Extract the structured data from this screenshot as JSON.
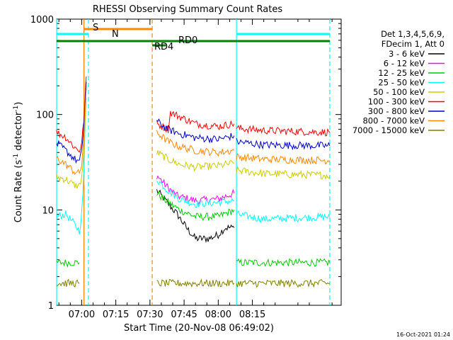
{
  "chart_data": {
    "type": "line",
    "title": "RHESSI Observing Summary Count Rates",
    "xlabel": "Start Time (20-Nov-08 06:49:02)",
    "ylabel": "Count Rate (s",
    "ylabel_sup": "-1",
    "ylabel_rest": " detector",
    "ylabel_sup2": "-1",
    "ylabel_end": ")",
    "y_scale": "log",
    "xlim_minutes": [
      409,
      534
    ],
    "ylim": [
      1,
      1000
    ],
    "x_ticks": [
      {
        "min": 420,
        "label": "07:00"
      },
      {
        "min": 435,
        "label": "07:15"
      },
      {
        "min": 450,
        "label": "07:30"
      },
      {
        "min": 465,
        "label": "07:45"
      },
      {
        "min": 480,
        "label": "08:00"
      },
      {
        "min": 495,
        "label": "08:15"
      }
    ],
    "y_ticks": [
      {
        "v": 1,
        "label": "1"
      },
      {
        "v": 10,
        "label": "10"
      },
      {
        "v": 100,
        "label": "100"
      },
      {
        "v": 1000,
        "label": "1000"
      }
    ],
    "legend_header": [
      "Det 1,3,4,5,6,9,",
      "FDecim 1, Att 0"
    ],
    "series": [
      {
        "name": "3 - 6 keV",
        "color": "#000000",
        "segments": [
          [
            [
              453,
              16
            ],
            [
              462,
              9
            ],
            [
              466,
              6.5
            ],
            [
              470,
              5
            ],
            [
              476,
              5
            ],
            [
              480,
              5.5
            ],
            [
              483,
              6.5
            ],
            [
              487,
              6.5
            ]
          ]
        ]
      },
      {
        "name": "6 - 12 keV",
        "color": "#ff00ff",
        "segments": [
          [
            [
              453,
              23
            ],
            [
              458,
              17
            ],
            [
              462,
              14
            ],
            [
              470,
              12.5
            ],
            [
              480,
              13
            ],
            [
              487,
              15
            ]
          ]
        ]
      },
      {
        "name": "12 - 25 keV",
        "color": "#00cc00",
        "segments": [
          [
            [
              409,
              2.8
            ],
            [
              419,
              2.8
            ]
          ],
          [
            [
              453,
              15
            ],
            [
              458,
              12
            ],
            [
              463,
              10
            ],
            [
              470,
              8.5
            ],
            [
              480,
              8.5
            ],
            [
              487,
              10
            ]
          ],
          [
            [
              488,
              2.8
            ],
            [
              529,
              2.8
            ]
          ]
        ]
      },
      {
        "name": "25 - 50 keV",
        "color": "#00ffff",
        "segments": [
          [
            [
              409,
              8.5
            ],
            [
              413,
              9
            ],
            [
              417,
              7
            ],
            [
              419,
              6
            ],
            [
              420,
              9
            ],
            [
              421,
              25
            ],
            [
              422,
              200
            ]
          ],
          [
            [
              453,
              21
            ],
            [
              458,
              16
            ],
            [
              463,
              13
            ],
            [
              470,
              11.5
            ],
            [
              480,
              12
            ],
            [
              487,
              12.5
            ]
          ],
          [
            [
              488,
              9
            ],
            [
              500,
              8
            ],
            [
              529,
              8.5
            ]
          ]
        ]
      },
      {
        "name": "50 - 100 keV",
        "color": "#cccc00",
        "segments": [
          [
            [
              409,
              22
            ],
            [
              413,
              21
            ],
            [
              417,
              18
            ],
            [
              419,
              18
            ],
            [
              420,
              22
            ],
            [
              421,
              40
            ],
            [
              422,
              150
            ]
          ],
          [
            [
              453,
              40
            ],
            [
              458,
              34
            ],
            [
              463,
              30
            ],
            [
              470,
              28
            ],
            [
              480,
              29
            ],
            [
              487,
              31
            ]
          ],
          [
            [
              488,
              26
            ],
            [
              500,
              24
            ],
            [
              529,
              23
            ]
          ]
        ]
      },
      {
        "name": "100 - 300 keV",
        "color": "#ff0000",
        "segments": [
          [
            [
              409,
              65
            ],
            [
              413,
              58
            ],
            [
              417,
              45
            ],
            [
              419,
              42
            ],
            [
              420,
              50
            ],
            [
              421,
              90
            ],
            [
              422,
              250
            ]
          ],
          [
            [
              453,
              80
            ],
            [
              458,
              70
            ],
            [
              459,
              105
            ],
            [
              463,
              95
            ],
            [
              470,
              80
            ],
            [
              480,
              75
            ],
            [
              487,
              80
            ]
          ],
          [
            [
              488,
              72
            ],
            [
              500,
              68
            ],
            [
              529,
              65
            ]
          ]
        ]
      },
      {
        "name": "300 - 800 keV",
        "color": "#0000cc",
        "segments": [
          [
            [
              409,
              50
            ],
            [
              413,
              42
            ],
            [
              417,
              34
            ],
            [
              419,
              32
            ],
            [
              420,
              40
            ],
            [
              421,
              80
            ],
            [
              422,
              220
            ]
          ],
          [
            [
              453,
              85
            ],
            [
              458,
              70
            ],
            [
              463,
              63
            ],
            [
              470,
              57
            ],
            [
              480,
              55
            ],
            [
              487,
              60
            ]
          ],
          [
            [
              488,
              52
            ],
            [
              500,
              48
            ],
            [
              529,
              47
            ]
          ]
        ]
      },
      {
        "name": "800 - 7000 keV",
        "color": "#ff8800",
        "segments": [
          [
            [
              409,
              35
            ],
            [
              413,
              30
            ],
            [
              417,
              25
            ],
            [
              419,
              24
            ],
            [
              420,
              30
            ],
            [
              421,
              60
            ],
            [
              422,
              180
            ]
          ],
          [
            [
              453,
              65
            ],
            [
              458,
              52
            ],
            [
              463,
              46
            ],
            [
              470,
              42
            ],
            [
              480,
              40
            ],
            [
              487,
              42
            ]
          ],
          [
            [
              488,
              36
            ],
            [
              500,
              34
            ],
            [
              529,
              33
            ]
          ]
        ]
      },
      {
        "name": "7000 - 15000 keV",
        "color": "#808000",
        "segments": [
          [
            [
              409,
              1.7
            ],
            [
              419,
              1.7
            ]
          ],
          [
            [
              453,
              1.7
            ],
            [
              487,
              1.7
            ]
          ],
          [
            [
              488,
              1.7
            ],
            [
              529,
              1.7
            ]
          ]
        ]
      }
    ],
    "markers": [
      {
        "label": "S",
        "color": "#ff8800"
      },
      {
        "label": "N",
        "color": "#00ffff"
      },
      {
        "label": "RD0",
        "color": "#008000"
      },
      {
        "label": "RD4",
        "color": "#008000"
      }
    ],
    "vertical_lines": {
      "cyan_solid": [
        409,
        488
      ],
      "cyan_dashed": [
        423,
        529
      ],
      "orange_solid": [
        421
      ],
      "orange_dashed": [
        451
      ]
    },
    "bars": {
      "saa_orange": [
        421,
        451
      ],
      "night_cyan": [
        [
          409,
          423
        ],
        [
          488,
          529
        ]
      ],
      "green_top": [
        409,
        529
      ],
      "green_rd0_segment": [
        451,
        457
      ]
    }
  },
  "footer": {
    "timestamp": "16-Oct-2021 01:24"
  }
}
